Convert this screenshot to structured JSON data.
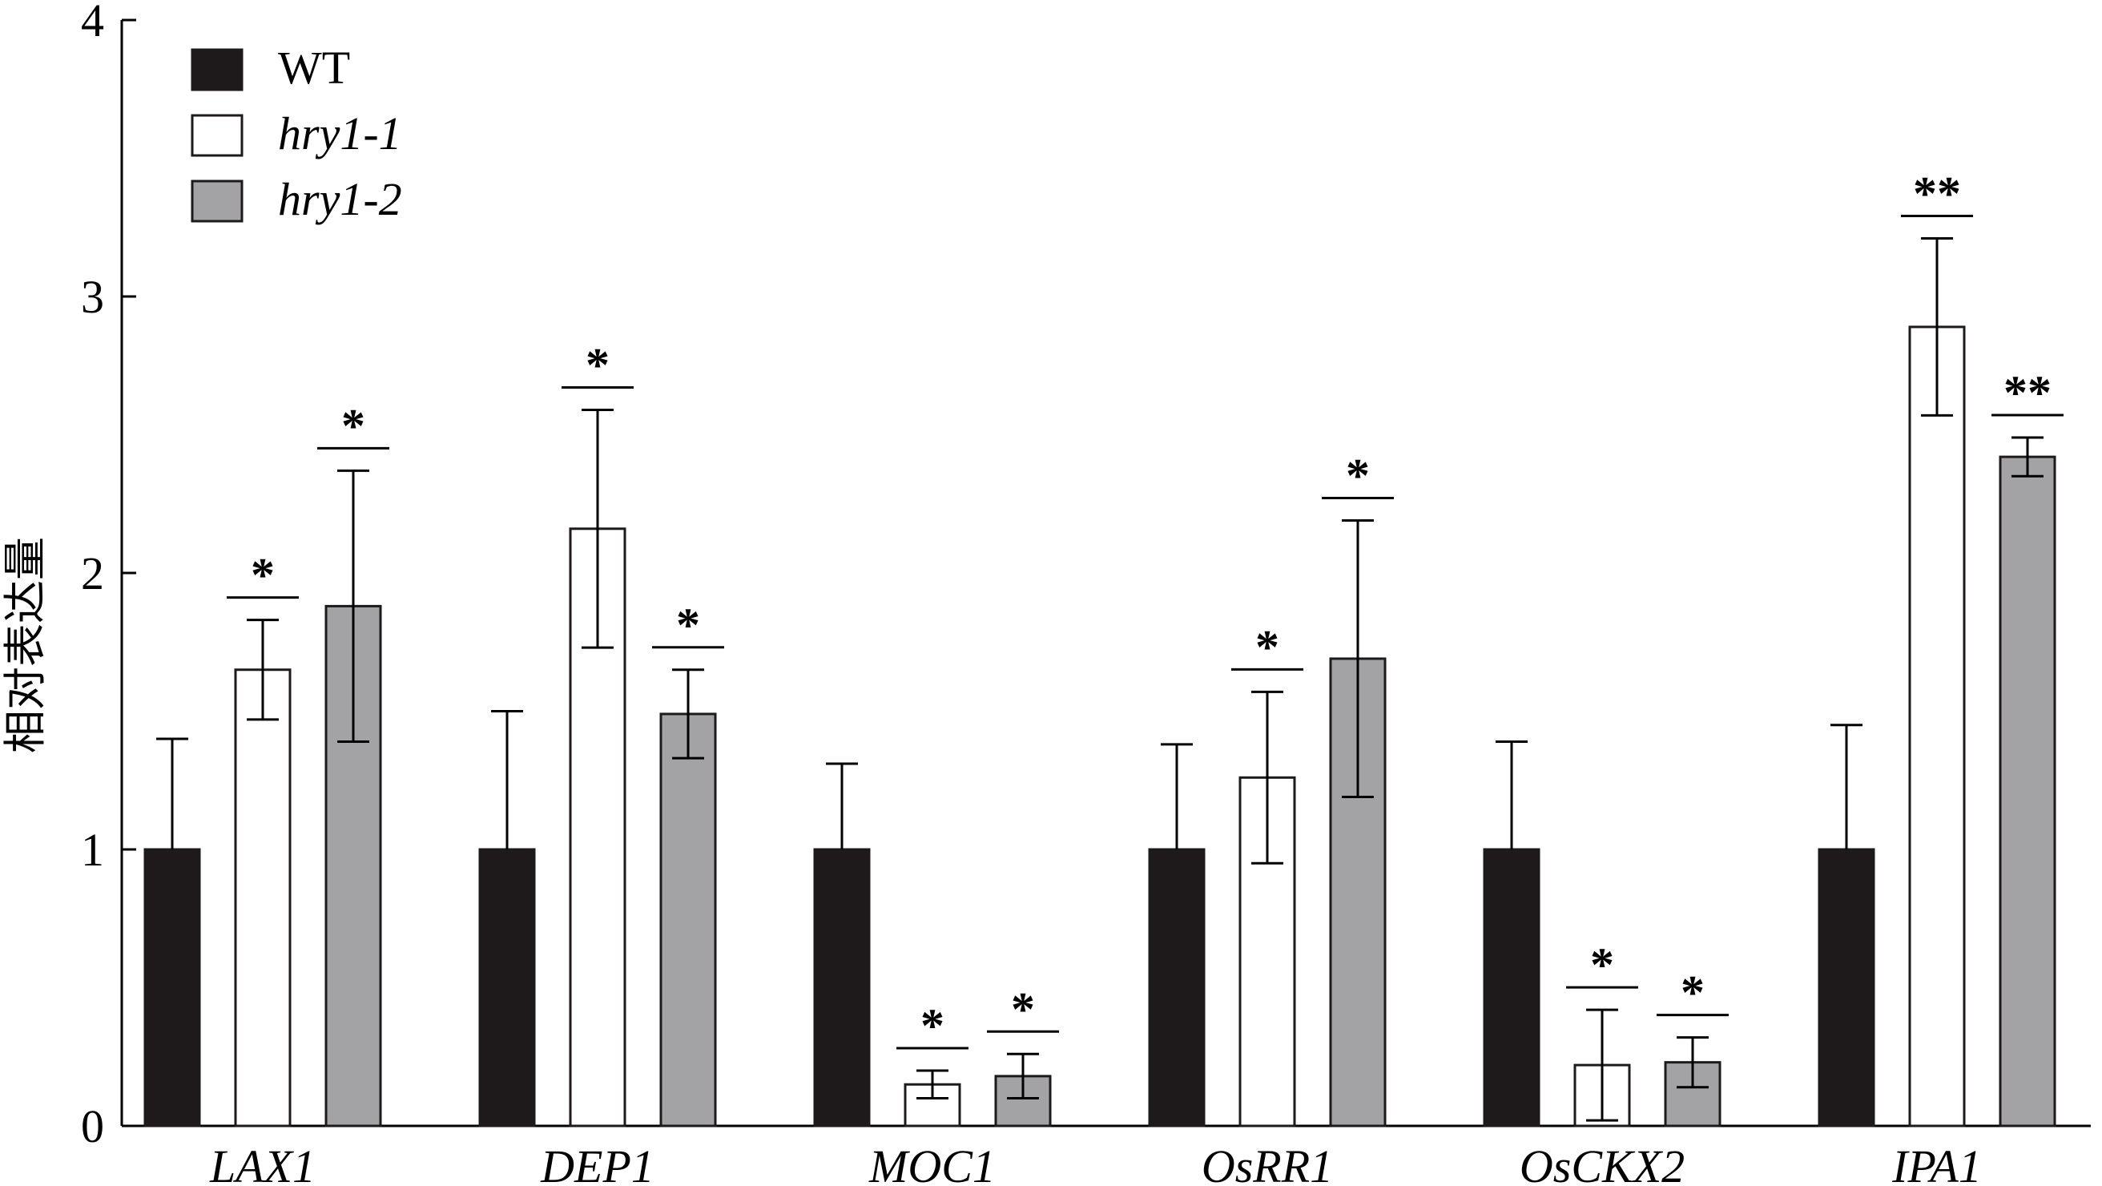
{
  "chart_data": {
    "type": "bar",
    "title": "",
    "xlabel": "",
    "ylabel": "相对表达量",
    "ylim": [
      0,
      4
    ],
    "yticks": [
      "0",
      "1",
      "2",
      "3",
      "4"
    ],
    "grid": false,
    "legend_position": "top-left",
    "categories": [
      "LAX1",
      "DEP1",
      "MOC1",
      "OsRR1",
      "OsCKX2",
      "IPA1"
    ],
    "series": [
      {
        "name": "WT",
        "color": "#1e1a1b",
        "italic": false,
        "values": [
          1.0,
          1.0,
          1.0,
          1.0,
          1.0,
          1.0
        ],
        "errors": [
          0.4,
          0.5,
          0.31,
          0.38,
          0.39,
          0.45
        ],
        "significance": [
          "",
          "",
          "",
          "",
          "",
          ""
        ]
      },
      {
        "name": "hry1-1",
        "color": "#ffffff",
        "italic": true,
        "values": [
          1.65,
          2.16,
          0.15,
          1.26,
          0.22,
          2.89
        ],
        "errors": [
          0.18,
          0.43,
          0.05,
          0.31,
          0.2,
          0.32
        ],
        "significance": [
          "*",
          "*",
          "*",
          "*",
          "*",
          "**"
        ]
      },
      {
        "name": "hry1-2",
        "color": "#a3a3a5",
        "italic": true,
        "values": [
          1.88,
          1.49,
          0.18,
          1.69,
          0.23,
          2.42
        ],
        "errors": [
          0.49,
          0.16,
          0.08,
          0.5,
          0.09,
          0.07
        ],
        "significance": [
          "*",
          "*",
          "*",
          "*",
          "*",
          "**"
        ]
      }
    ]
  }
}
